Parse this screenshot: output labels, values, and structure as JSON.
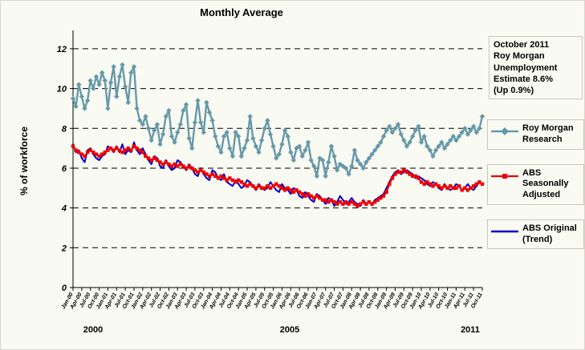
{
  "title": "Monthly Average",
  "ylabel": "% of workforce",
  "annotation": {
    "text": "October 2011\nRoy Morgan\nUnemployment\nEstimate 8.6%\n(Up 0.9%)"
  },
  "legend": [
    {
      "label": "Roy Morgan\nResearch",
      "color": "#6699AA",
      "marker": "diamond"
    },
    {
      "label": "ABS Seasonally\nAdjusted",
      "color": "#EE0000",
      "marker": "square"
    },
    {
      "label": "ABS Original\n(Trend)",
      "color": "#0000CC",
      "marker": "none"
    }
  ],
  "year_labels": [
    "2000",
    "2005",
    "2011"
  ],
  "chart_data": {
    "type": "line",
    "title": "Monthly Average",
    "xlabel": "",
    "ylabel": "% of workforce",
    "ylim": [
      0,
      12.6
    ],
    "yticks": [
      0,
      2,
      4,
      6,
      8,
      10,
      12
    ],
    "gridlines": [
      2,
      4,
      6,
      8,
      10,
      12
    ],
    "grid_style": "dashed",
    "legend_position": "right",
    "x_start": "Jan-00",
    "x_end": "Oct-11",
    "x_frequency": "monthly",
    "x_tick_labels": [
      "Jan-00",
      "Apr-00",
      "Jul-00",
      "Oct-00",
      "Jan-01",
      "Apr-01",
      "Jul-01",
      "Oct-01",
      "Jan-02",
      "Apr-02",
      "Jul-02",
      "Oct-02",
      "Jan-03",
      "Apr-03",
      "Jul-03",
      "Oct-03",
      "Jan-04",
      "Apr-04",
      "Jul-04",
      "Oct-04",
      "Jan-05",
      "Apr-05",
      "Jul-05",
      "Oct-05",
      "Jan-06",
      "Apr-06",
      "Jul-06",
      "Oct-06",
      "Jan-07",
      "Apr-07",
      "Jul-07",
      "Oct-07",
      "Jan-08",
      "Apr-08",
      "Jul-08",
      "Oct-08",
      "Jan-09",
      "Apr-09",
      "Jul-09",
      "Oct-09",
      "Jan-10",
      "Apr-10",
      "Jul-10",
      "Oct-10",
      "Jan-11",
      "Apr-11",
      "Jul-11",
      "Oct-11"
    ],
    "series": [
      {
        "name": "Roy Morgan Research",
        "color": "#6699AA",
        "marker": "diamond",
        "values": [
          9.5,
          9.1,
          10.2,
          9.6,
          9.0,
          9.4,
          10.4,
          10.0,
          10.6,
          10.2,
          10.8,
          10.4,
          9.0,
          10.3,
          11.1,
          9.6,
          10.6,
          11.2,
          10.1,
          9.3,
          10.8,
          11.1,
          9.0,
          8.4,
          8.2,
          8.6,
          8.0,
          7.4,
          7.9,
          8.2,
          7.2,
          7.7,
          8.6,
          8.9,
          7.6,
          7.3,
          7.8,
          8.2,
          8.9,
          9.2,
          7.5,
          7.0,
          8.3,
          9.4,
          8.3,
          7.8,
          9.3,
          8.8,
          8.4,
          7.6,
          7.1,
          6.8,
          7.6,
          7.8,
          7.0,
          6.6,
          7.8,
          7.6,
          6.6,
          7.0,
          7.4,
          8.6,
          7.5,
          7.1,
          6.8,
          7.4,
          8.0,
          8.4,
          7.7,
          7.1,
          6.5,
          6.7,
          7.2,
          7.9,
          7.6,
          6.8,
          6.4,
          7.0,
          7.1,
          6.6,
          6.9,
          7.3,
          6.4,
          6.1,
          5.6,
          6.5,
          6.4,
          5.6,
          6.3,
          7.1,
          6.6,
          5.9,
          6.2,
          6.1,
          6.0,
          5.7,
          6.1,
          6.9,
          6.4,
          6.2,
          6.0,
          6.3,
          6.5,
          6.7,
          6.9,
          7.1,
          7.3,
          7.6,
          7.9,
          8.1,
          7.8,
          8.0,
          8.2,
          7.7,
          7.4,
          7.1,
          7.3,
          7.6,
          7.9,
          8.1,
          7.3,
          7.6,
          7.1,
          6.9,
          6.6,
          6.9,
          7.1,
          7.3,
          7.0,
          7.2,
          7.4,
          7.6,
          7.4,
          7.6,
          7.8,
          8.0,
          7.7,
          7.9,
          8.1,
          7.8,
          8.0,
          8.6
        ]
      },
      {
        "name": "ABS Original (Trend)",
        "color": "#0000CC",
        "marker": "none",
        "values": [
          7.2,
          6.8,
          6.9,
          6.5,
          6.3,
          6.9,
          7.0,
          6.7,
          6.5,
          6.4,
          6.6,
          6.7,
          7.1,
          7.0,
          6.8,
          7.1,
          6.8,
          7.2,
          6.7,
          6.9,
          6.8,
          7.3,
          6.9,
          6.7,
          7.0,
          6.7,
          6.4,
          6.2,
          6.6,
          6.5,
          6.1,
          6.0,
          6.4,
          6.1,
          5.9,
          6.0,
          6.4,
          6.3,
          6.1,
          5.9,
          6.2,
          6.0,
          5.7,
          5.6,
          6.0,
          5.7,
          5.5,
          5.4,
          5.9,
          5.8,
          5.5,
          5.4,
          5.7,
          5.3,
          5.2,
          5.1,
          5.4,
          5.2,
          5.0,
          5.1,
          5.4,
          5.3,
          5.1,
          4.9,
          5.2,
          5.0,
          4.9,
          5.0,
          5.3,
          5.1,
          4.9,
          4.8,
          5.2,
          5.0,
          4.9,
          4.7,
          5.0,
          4.9,
          4.6,
          4.5,
          4.8,
          4.6,
          4.4,
          4.3,
          4.7,
          4.6,
          4.4,
          4.2,
          4.5,
          4.4,
          4.1,
          4.3,
          4.6,
          4.4,
          4.2,
          4.3,
          4.5,
          4.3,
          4.2,
          4.1,
          4.4,
          4.2,
          4.3,
          4.2,
          4.4,
          4.5,
          4.6,
          4.7,
          5.0,
          5.3,
          5.6,
          5.8,
          5.9,
          5.7,
          5.8,
          5.9,
          5.8,
          5.7,
          5.5,
          5.6,
          5.5,
          5.4,
          5.2,
          5.1,
          5.3,
          5.2,
          5.0,
          4.9,
          5.2,
          5.0,
          4.9,
          5.0,
          5.2,
          5.1,
          4.9,
          5.0,
          5.2,
          5.0,
          4.9,
          5.1,
          5.3,
          5.2
        ]
      },
      {
        "name": "ABS Seasonally Adjusted",
        "color": "#EE0000",
        "marker": "square",
        "values": [
          7.1,
          6.9,
          6.8,
          6.7,
          6.6,
          6.8,
          6.9,
          6.8,
          6.7,
          6.6,
          6.7,
          6.8,
          6.9,
          7.0,
          6.9,
          7.0,
          6.9,
          6.8,
          6.9,
          7.0,
          6.9,
          7.1,
          7.0,
          6.9,
          6.8,
          6.6,
          6.5,
          6.4,
          6.5,
          6.4,
          6.3,
          6.2,
          6.3,
          6.2,
          6.1,
          6.2,
          6.1,
          6.2,
          6.1,
          6.0,
          6.1,
          6.0,
          5.9,
          5.8,
          5.9,
          5.8,
          5.7,
          5.6,
          5.7,
          5.6,
          5.5,
          5.6,
          5.5,
          5.4,
          5.5,
          5.4,
          5.3,
          5.4,
          5.3,
          5.2,
          5.1,
          5.2,
          5.1,
          5.0,
          5.1,
          5.0,
          5.0,
          5.1,
          5.0,
          5.1,
          5.2,
          5.1,
          5.0,
          4.9,
          5.0,
          4.9,
          4.8,
          4.9,
          4.8,
          4.7,
          4.6,
          4.7,
          4.6,
          4.5,
          4.6,
          4.5,
          4.4,
          4.4,
          4.3,
          4.4,
          4.3,
          4.2,
          4.3,
          4.2,
          4.3,
          4.2,
          4.3,
          4.2,
          4.1,
          4.2,
          4.3,
          4.2,
          4.3,
          4.2,
          4.3,
          4.4,
          4.5,
          4.6,
          4.8,
          5.2,
          5.5,
          5.7,
          5.8,
          5.8,
          5.9,
          5.8,
          5.7,
          5.6,
          5.6,
          5.5,
          5.3,
          5.2,
          5.3,
          5.2,
          5.1,
          5.2,
          5.1,
          5.0,
          5.1,
          5.0,
          5.1,
          5.0,
          5.0,
          5.1,
          4.9,
          5.0,
          4.9,
          5.0,
          5.1,
          5.2,
          5.3,
          5.2
        ]
      }
    ]
  }
}
